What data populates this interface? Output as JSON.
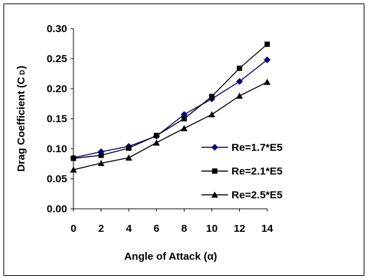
{
  "chart_data": {
    "type": "line",
    "title": "",
    "xlabel": "Angle of Attack (α)",
    "ylabel_main": "Drag Coefficient (C",
    "ylabel_sub": "D",
    "ylabel_close": ")",
    "xlim": [
      0,
      14
    ],
    "ylim": [
      0,
      0.3
    ],
    "x": [
      0,
      2,
      4,
      6,
      8,
      10,
      12,
      14
    ],
    "x_tick_labels": [
      "0",
      "2",
      "4",
      "6",
      "8",
      "10",
      "12",
      "14"
    ],
    "y_ticks": [
      0,
      0.05,
      0.1,
      0.15,
      0.2,
      0.25,
      0.3
    ],
    "y_tick_labels": [
      "0.00",
      "0.05",
      "0.10",
      "0.15",
      "0.20",
      "0.25",
      "0.30"
    ],
    "grid": false,
    "legend_position": "right",
    "series": [
      {
        "name": "Re=1.7*E5",
        "marker": "diamond",
        "color": "#000080",
        "values": [
          0.085,
          0.095,
          0.104,
          0.121,
          0.157,
          0.183,
          0.212,
          0.248
        ]
      },
      {
        "name": "Re=2.1*E5",
        "marker": "square",
        "color": "#000000",
        "values": [
          0.084,
          0.089,
          0.101,
          0.122,
          0.15,
          0.187,
          0.234,
          0.274
        ]
      },
      {
        "name": "Re=2.5*E5",
        "marker": "triangle",
        "color": "#000000",
        "values": [
          0.065,
          0.076,
          0.085,
          0.11,
          0.134,
          0.157,
          0.188,
          0.211
        ]
      }
    ]
  }
}
